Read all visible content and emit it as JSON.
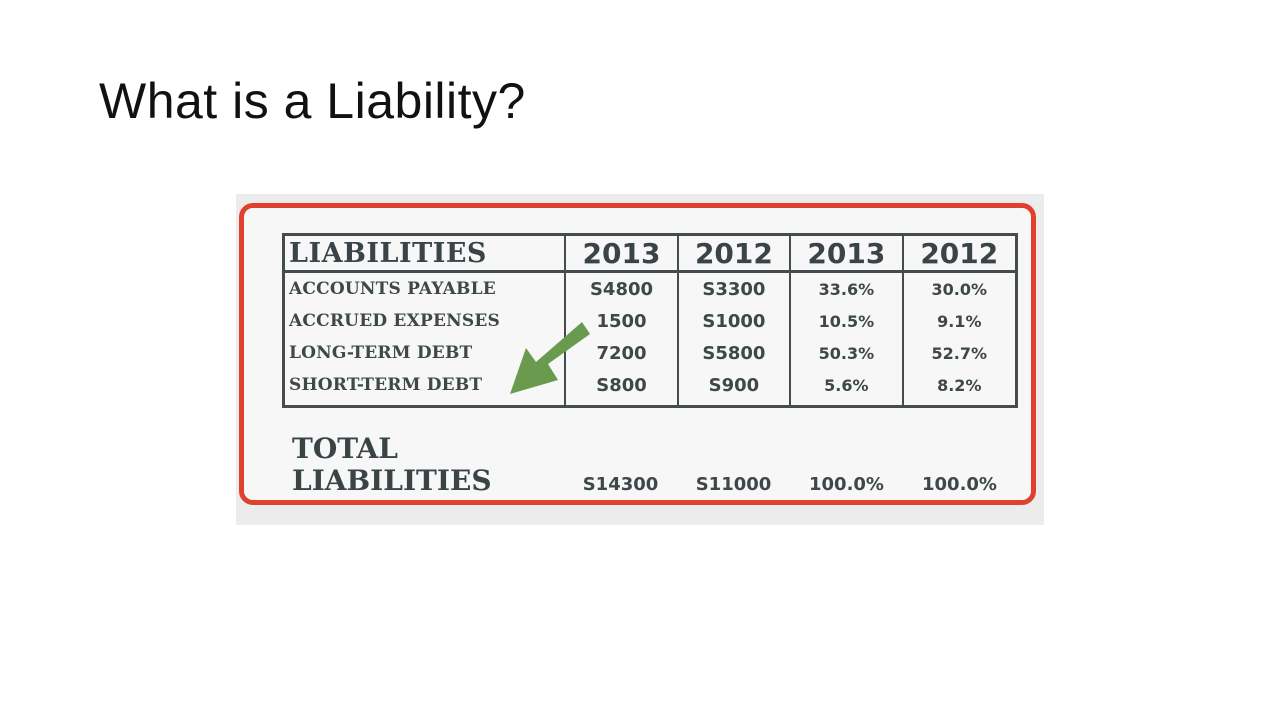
{
  "slide": {
    "title": "What is a Liability?"
  },
  "table": {
    "headers": [
      "LIABILITIES",
      "2013",
      "2012",
      "2013",
      "2012"
    ],
    "rows": [
      [
        "ACCOUNTS PAYABLE",
        "S4800",
        "S3300",
        "33.6%",
        "30.0%"
      ],
      [
        "ACCRUED EXPENSES",
        "1500",
        "S1000",
        "10.5%",
        "9.1%"
      ],
      [
        "LONG-TERM DEBT",
        "7200",
        "S5800",
        "50.3%",
        "52.7%"
      ],
      [
        "SHORT-TERM DEBT",
        "S800",
        "S900",
        "5.6%",
        "8.2%"
      ]
    ],
    "total": {
      "label_line1": "TOTAL",
      "label_line2": "LIABILITIES",
      "values": [
        "S14300",
        "S11000",
        "100.0%",
        "100.0%"
      ]
    }
  },
  "colors": {
    "frame": "#e0412e",
    "arrow": "#6a9a4e",
    "ink": "#3e4749"
  },
  "icons": {
    "arrow": "green-arrow-icon"
  }
}
